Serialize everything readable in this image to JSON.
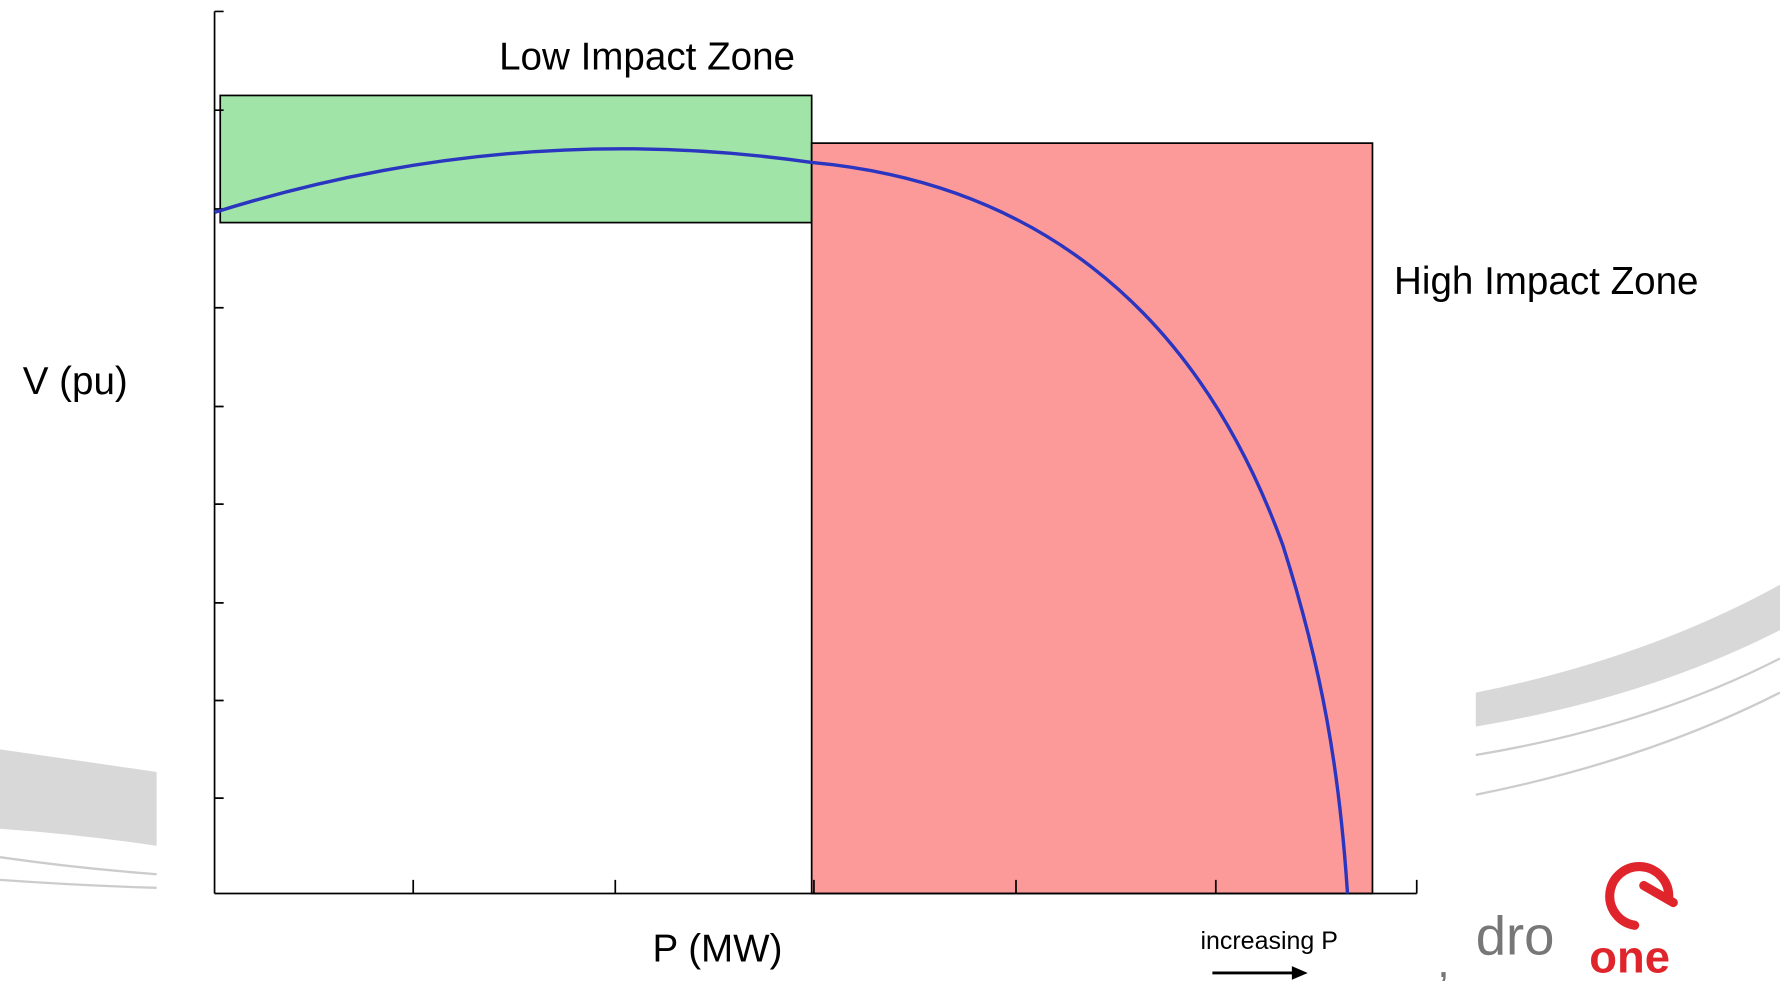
{
  "zones": {
    "low": "Low Impact Zone",
    "high": "High Impact Zone"
  },
  "axes": {
    "y_label": "V (pu)",
    "x_label": "P (MW)"
  },
  "annotation": "increasing P",
  "logo": {
    "left": "dro",
    "right": "one"
  }
}
